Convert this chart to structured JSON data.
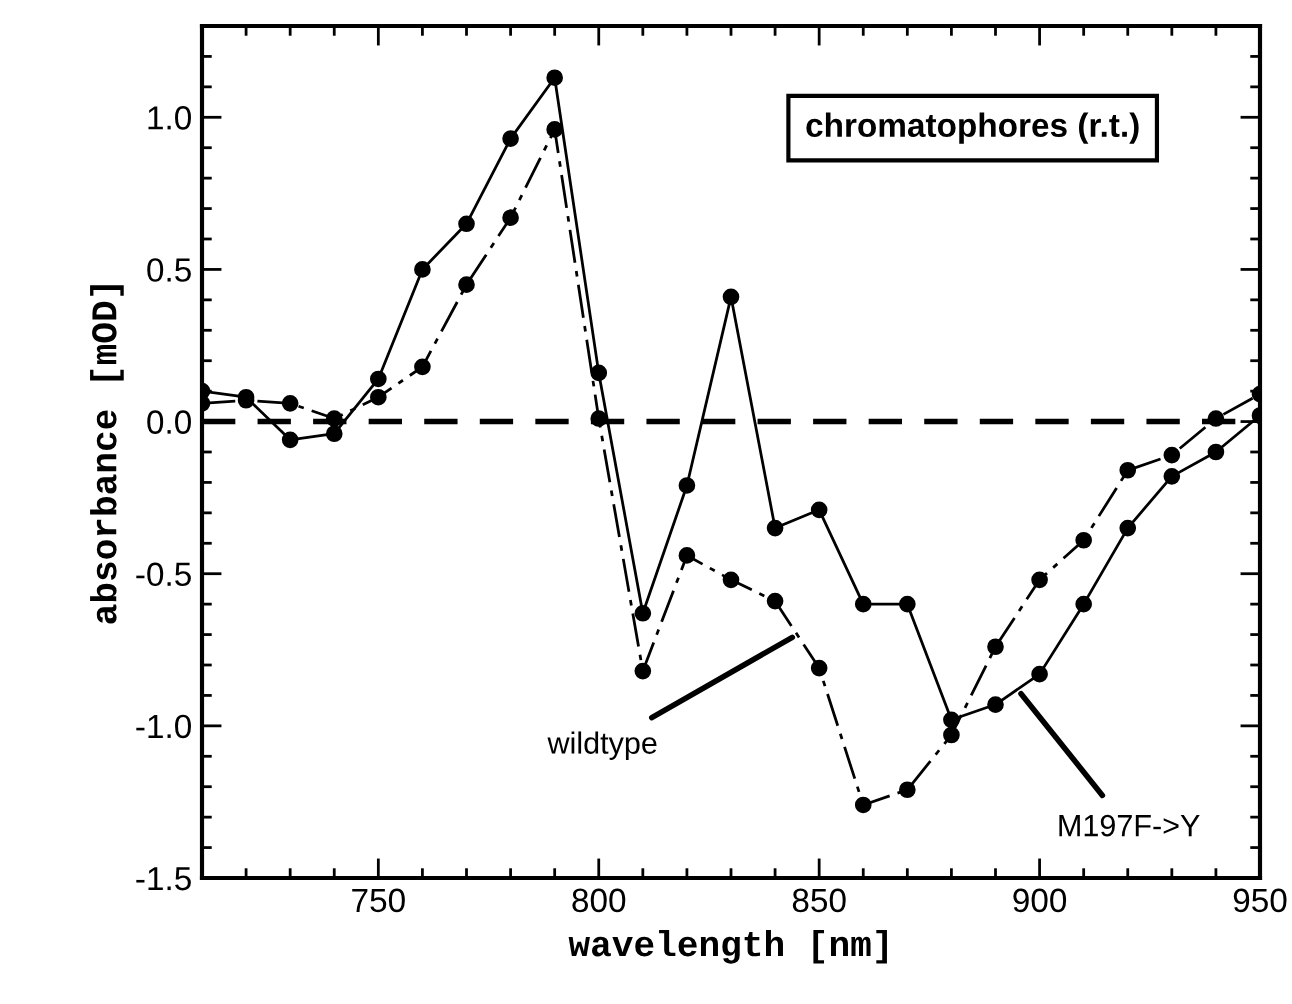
{
  "chart_data": {
    "type": "line",
    "xlabel": "wavelength [nm]",
    "ylabel": "absorbance [mOD]",
    "annotations": [
      {
        "text": "chromatophores (r.t.)"
      },
      {
        "text": "wildtype",
        "x": 845,
        "y": -0.7
      },
      {
        "text": "M197F->Y",
        "x": 895,
        "y": -0.88
      }
    ],
    "x": [
      710,
      720,
      730,
      740,
      750,
      760,
      770,
      780,
      790,
      800,
      810,
      820,
      830,
      840,
      850,
      860,
      870,
      880,
      890,
      900,
      910,
      920,
      930,
      940,
      950
    ],
    "series": [
      {
        "color": "#000000",
        "line_style": "solid",
        "values": [
          0.1,
          0.08,
          -0.06,
          -0.04,
          0.14,
          0.5,
          0.65,
          0.93,
          1.13,
          0.16,
          -0.63,
          -0.21,
          0.41,
          -0.35,
          -0.29,
          -0.6,
          -0.6,
          -0.98,
          -0.93,
          -0.83,
          -0.6,
          -0.35,
          -0.18,
          -0.1,
          0.02
        ]
      },
      {
        "color": "#000000",
        "line_style": "dashed",
        "values": [
          0.06,
          0.07,
          0.06,
          0.01,
          0.08,
          0.18,
          0.45,
          0.67,
          0.96,
          0.01,
          -0.82,
          -0.44,
          -0.52,
          -0.59,
          -0.81,
          -1.26,
          -1.21,
          -1.03,
          -0.74,
          -0.52,
          -0.39,
          -0.16,
          -0.11,
          0.01,
          0.09
        ]
      }
    ],
    "marker": "circle",
    "ref_lines": [
      {
        "axis": "y",
        "value": 0,
        "line_style": "dashed",
        "color": "#000000"
      }
    ],
    "xlim": [
      710,
      950
    ],
    "ylim": [
      -1.5,
      1.3
    ],
    "xticks": [
      {
        "value": 710,
        "label": null
      },
      {
        "value": 720,
        "label": null
      },
      {
        "value": 730,
        "label": null
      },
      {
        "value": 740,
        "label": null
      },
      750,
      {
        "value": 760,
        "label": null
      },
      {
        "value": 770,
        "label": null
      },
      {
        "value": 780,
        "label": null
      },
      {
        "value": 790,
        "label": null
      },
      800,
      {
        "value": 810,
        "label": null
      },
      {
        "value": 820,
        "label": null
      },
      {
        "value": 830,
        "label": null
      },
      {
        "value": 840,
        "label": null
      },
      850,
      {
        "value": 860,
        "label": null
      },
      {
        "value": 870,
        "label": null
      },
      {
        "value": 880,
        "label": null
      },
      {
        "value": 890,
        "label": null
      },
      900,
      {
        "value": 910,
        "label": null
      },
      {
        "value": 920,
        "label": null
      },
      {
        "value": 930,
        "label": null
      },
      {
        "value": 940,
        "label": null
      },
      950
    ],
    "yticks": [
      {
        "value": -1.5,
        "label": "-1.5"
      },
      {
        "value": -1.4,
        "label": null
      },
      {
        "value": -1.3,
        "label": null
      },
      {
        "value": -1.2,
        "label": null
      },
      {
        "value": -1.1,
        "label": null
      },
      {
        "value": -1.0,
        "label": "-1.0"
      },
      {
        "value": -0.9,
        "label": null
      },
      {
        "value": -0.8,
        "label": null
      },
      {
        "value": -0.7,
        "label": null
      },
      {
        "value": -0.6,
        "label": null
      },
      {
        "value": -0.5,
        "label": "-0.5"
      },
      {
        "value": -0.4,
        "label": null
      },
      {
        "value": -0.3,
        "label": null
      },
      {
        "value": -0.2,
        "label": null
      },
      {
        "value": -0.1,
        "label": null
      },
      {
        "value": 0.0,
        "label": "0.0"
      },
      {
        "value": 0.1,
        "label": null
      },
      {
        "value": 0.2,
        "label": null
      },
      {
        "value": 0.3,
        "label": null
      },
      {
        "value": 0.4,
        "label": null
      },
      {
        "value": 0.5,
        "label": "0.5"
      },
      {
        "value": 0.6,
        "label": null
      },
      {
        "value": 0.7,
        "label": null
      },
      {
        "value": 0.8,
        "label": null
      },
      {
        "value": 0.9,
        "label": null
      },
      {
        "value": 1.0,
        "label": "1.0"
      },
      {
        "value": 1.1,
        "label": null
      },
      {
        "value": 1.2,
        "label": null
      },
      {
        "value": 1.3,
        "label": null
      }
    ],
    "grid": false
  }
}
